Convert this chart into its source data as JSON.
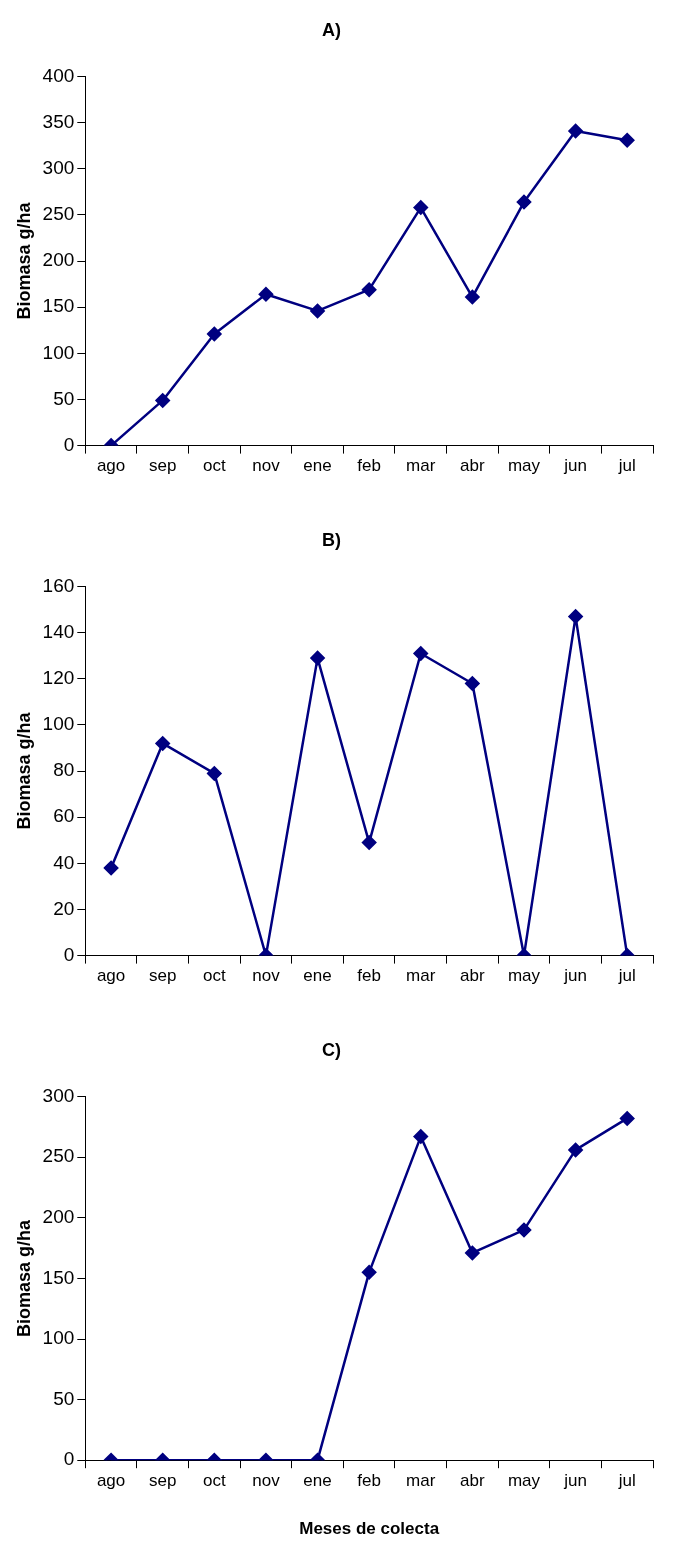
{
  "chart_data": [
    {
      "type": "line",
      "title": "A)",
      "ylabel": "Biomasa g/ha",
      "categories": [
        "ago",
        "sep",
        "oct",
        "nov",
        "ene",
        "feb",
        "mar",
        "abr",
        "may",
        "jun",
        "jul"
      ],
      "series": [
        {
          "color": "#000080",
          "values": [
            0,
            49,
            121,
            164,
            146,
            169,
            258,
            161,
            264,
            341,
            331
          ]
        }
      ],
      "ylim": [
        0,
        400
      ],
      "yticks": [
        0,
        50,
        100,
        150,
        200,
        250,
        300,
        350,
        400
      ],
      "grid": false,
      "legend": false,
      "marker": "diamond",
      "line_style": "solid"
    },
    {
      "type": "line",
      "title": "B)",
      "ylabel": "Biomasa g/ha",
      "categories": [
        "ago",
        "sep",
        "oct",
        "nov",
        "ene",
        "feb",
        "mar",
        "abr",
        "may",
        "jun",
        "jul"
      ],
      "series": [
        {
          "color": "#000080",
          "values": [
            38,
            92,
            79,
            0,
            129,
            49,
            131,
            118,
            0,
            147,
            0
          ]
        }
      ],
      "ylim": [
        0,
        160
      ],
      "yticks": [
        0,
        20,
        40,
        60,
        80,
        100,
        120,
        140,
        160
      ],
      "grid": false,
      "legend": false,
      "marker": "diamond",
      "line_style": "solid"
    },
    {
      "type": "line",
      "title": "C)",
      "ylabel": "Biomasa g/ha",
      "xlabel": "Meses de colecta",
      "categories": [
        "ago",
        "sep",
        "oct",
        "nov",
        "ene",
        "feb",
        "mar",
        "abr",
        "may",
        "jun",
        "jul"
      ],
      "series": [
        {
          "color": "#000080",
          "values": [
            0,
            0,
            0,
            0,
            0,
            155,
            267,
            171,
            190,
            256,
            282
          ]
        }
      ],
      "ylim": [
        0,
        300
      ],
      "yticks": [
        0,
        50,
        100,
        150,
        200,
        250,
        300
      ],
      "grid": false,
      "legend": false,
      "marker": "diamond",
      "line_style": "solid"
    }
  ]
}
